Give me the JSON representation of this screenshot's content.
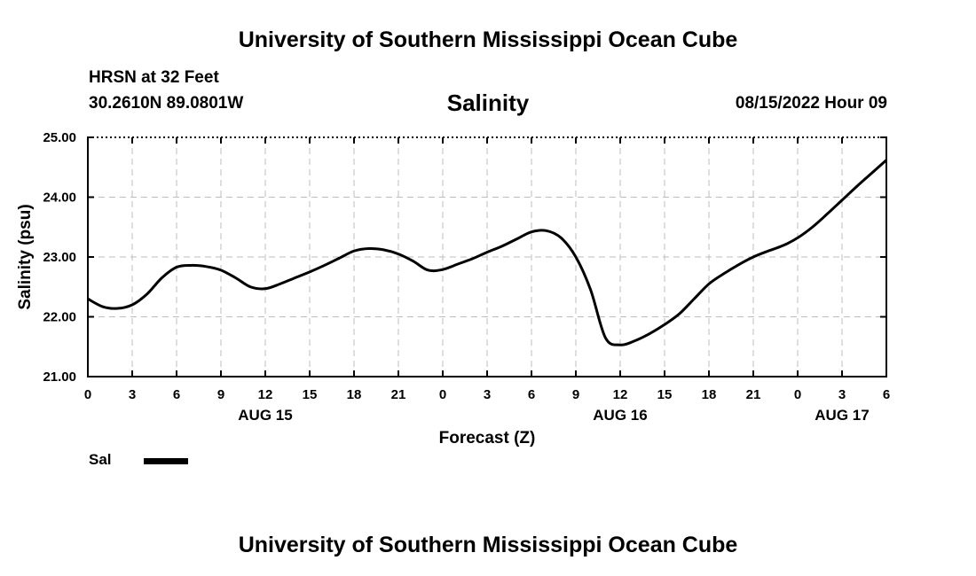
{
  "header": {
    "title": "University of Southern Mississippi Ocean Cube",
    "station": "HRSN at 32 Feet",
    "coords": "30.2610N  89.0801W",
    "datetime": "08/15/2022 Hour 09"
  },
  "footer": {
    "title": "University of Southern Mississippi Ocean Cube"
  },
  "legend": {
    "label": "Sal",
    "color": "#000000"
  },
  "chart_data": {
    "type": "line",
    "title": "Salinity",
    "xlabel": "Forecast (Z)",
    "ylabel": "Salinity (psu)",
    "x_unit": "hours from 00Z Aug 15",
    "xlim": [
      0,
      54
    ],
    "ylim": [
      21.0,
      25.0
    ],
    "y_ticks": [
      "21.00",
      "22.00",
      "23.00",
      "24.00",
      "25.00"
    ],
    "x_ticks": [
      "0",
      "3",
      "6",
      "9",
      "12",
      "15",
      "18",
      "21",
      "0",
      "3",
      "6",
      "9",
      "12",
      "15",
      "18",
      "21",
      "0",
      "3",
      "6"
    ],
    "date_labels": [
      {
        "label": "AUG 15",
        "x": 12
      },
      {
        "label": "AUG 16",
        "x": 36
      },
      {
        "label": "AUG 17",
        "x": 51
      }
    ],
    "grid": true,
    "series": [
      {
        "name": "Sal",
        "color": "#000000",
        "x": [
          0,
          1,
          2,
          3,
          4,
          5,
          6,
          7,
          8,
          9,
          10,
          11,
          12,
          13,
          14,
          15,
          16,
          17,
          18,
          19,
          20,
          21,
          22,
          23,
          24,
          25,
          26,
          27,
          28,
          29,
          30,
          31,
          32,
          33,
          34,
          35,
          36,
          37,
          38,
          39,
          40,
          41,
          42,
          43,
          44,
          45,
          46,
          47,
          48,
          49,
          50,
          51,
          52,
          53,
          54
        ],
        "values": [
          22.3,
          22.17,
          22.14,
          22.2,
          22.38,
          22.65,
          22.83,
          22.86,
          22.84,
          22.78,
          22.65,
          22.5,
          22.47,
          22.55,
          22.65,
          22.75,
          22.86,
          22.98,
          23.1,
          23.14,
          23.12,
          23.05,
          22.93,
          22.78,
          22.79,
          22.88,
          22.97,
          23.08,
          23.18,
          23.3,
          23.42,
          23.44,
          23.32,
          23.0,
          22.45,
          21.65,
          21.53,
          21.6,
          21.72,
          21.87,
          22.05,
          22.3,
          22.55,
          22.72,
          22.87,
          23.0,
          23.1,
          23.19,
          23.32,
          23.5,
          23.72,
          23.95,
          24.18,
          24.4,
          24.62
        ]
      }
    ]
  }
}
